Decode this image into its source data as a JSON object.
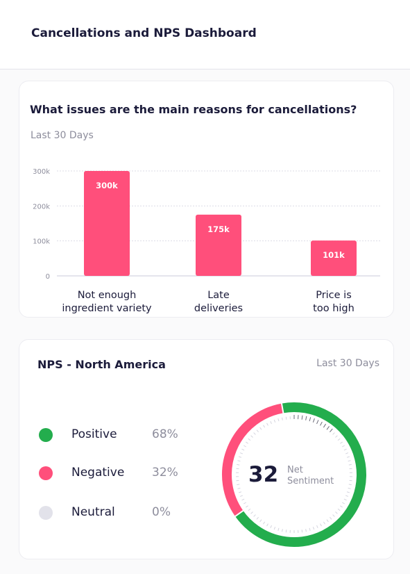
{
  "header": {
    "title": "Cancellations and NPS Dashboard"
  },
  "cancellations": {
    "title": "What issues are the main reasons for cancellations?",
    "period": "Last 30 Days"
  },
  "chart_data": {
    "type": "bar",
    "categories": [
      [
        "Not enough",
        "ingredient variety"
      ],
      [
        "Late",
        "deliveries"
      ],
      [
        "Price is",
        "too high"
      ]
    ],
    "values": [
      300000,
      175000,
      101000
    ],
    "data_labels": [
      "300k",
      "175k",
      "101k"
    ],
    "yticks": [
      0,
      100000,
      200000,
      300000
    ],
    "ytick_labels": [
      "0",
      "100k",
      "200k",
      "300k"
    ],
    "ylim": [
      0,
      300000
    ],
    "grid": true,
    "bar_color": "#ff4f7b",
    "title": "",
    "xlabel": "",
    "ylabel": ""
  },
  "nps": {
    "title": "NPS - North America",
    "period": "Last 30 Days",
    "score": "32",
    "score_label_line1": "Net",
    "score_label_line2": "Sentiment",
    "legend": [
      {
        "label": "Positive",
        "value": "68%",
        "color": "#23ad4d"
      },
      {
        "label": "Negative",
        "value": "32%",
        "color": "#ff4f7b"
      },
      {
        "label": "Neutral",
        "value": "0%",
        "color": "#e2e2ea"
      }
    ],
    "shares": [
      0.68,
      0.32,
      0.0
    ]
  }
}
